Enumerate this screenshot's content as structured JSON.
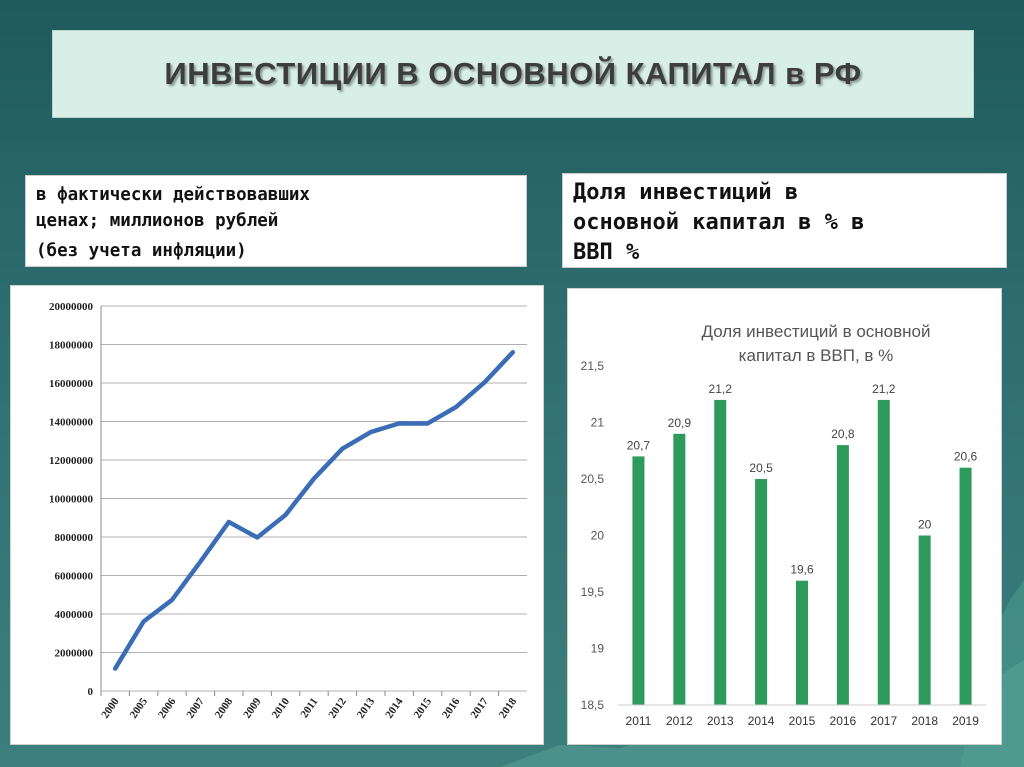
{
  "title": "ИНВЕСТИЦИИ В ОСНОВНОЙ КАПИТАЛ в РФ",
  "left_label": {
    "line1": "в фактически действовавших цен­ах; миллионов рублей",
    "line1_a": "в фактически действовавших",
    "line1_b": "ценах; миллионов рублей",
    "line2": "(без учета инфляции)"
  },
  "right_label": {
    "line1": "Доля инвестиций в",
    "line2": "основной капитал в % в",
    "line3": "ВВП %"
  },
  "colors": {
    "line": "#3b6db7",
    "bar": "#2e9a5c",
    "grid": "#b0b0b0"
  },
  "chart_data": [
    {
      "type": "line",
      "x": [
        "2000",
        "2005",
        "2006",
        "2007",
        "2008",
        "2009",
        "2010",
        "2011",
        "2012",
        "2013",
        "2014",
        "2015",
        "2016",
        "2017",
        "2018"
      ],
      "values": [
        1165000,
        3611000,
        4730000,
        6716000,
        8782000,
        7976000,
        9152000,
        11036000,
        12586000,
        13450000,
        13903000,
        13897000,
        14749000,
        16027000,
        17595000
      ],
      "ylim": [
        0,
        20000000
      ],
      "yticks": [
        "0",
        "2000000",
        "4000000",
        "6000000",
        "8000000",
        "10000000",
        "12000000",
        "14000000",
        "16000000",
        "18000000",
        "20000000"
      ],
      "grid": true
    },
    {
      "type": "bar",
      "title_line1": "Доля инвестиций в основной",
      "title_line2": "капитал в ВВП, в %",
      "categories": [
        "2011",
        "2012",
        "2013",
        "2014",
        "2015",
        "2016",
        "2017",
        "2018",
        "2019"
      ],
      "values": [
        20.7,
        20.9,
        21.2,
        20.5,
        19.6,
        20.8,
        21.2,
        20,
        20.6
      ],
      "data_labels": [
        "20,7",
        "20,9",
        "21,2",
        "20,5",
        "19,6",
        "20,8",
        "21,2",
        "20",
        "20,6"
      ],
      "ylim": [
        18.5,
        21.5
      ],
      "yticks": [
        "18,5",
        "19",
        "19,5",
        "20",
        "20,5",
        "21",
        "21,5"
      ],
      "grid": false
    }
  ]
}
